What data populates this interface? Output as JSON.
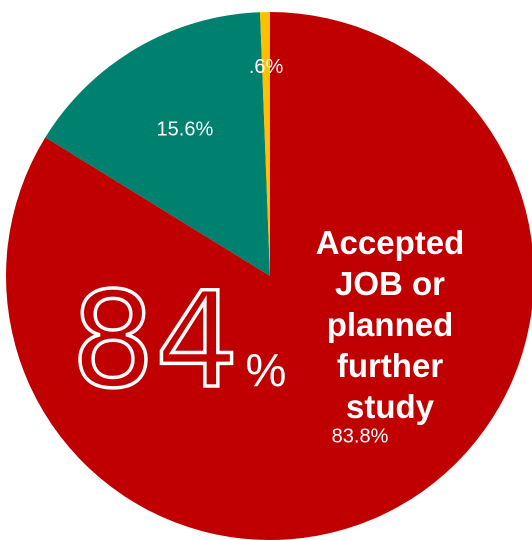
{
  "chart_data": {
    "type": "pie",
    "slices": [
      {
        "value": 83.8,
        "label": "83.8%",
        "color": "#c00000"
      },
      {
        "value": 15.6,
        "label": "15.6%",
        "color": "#008170"
      },
      {
        "value": 0.6,
        "label": ".6%",
        "color": "#ffc000"
      }
    ],
    "start_angle_deg": 0,
    "direction": "clockwise"
  },
  "callout": {
    "number": "84",
    "unit": "%",
    "caption_lines": [
      "Accepted",
      "JOB or",
      "planned",
      "further",
      "study"
    ]
  }
}
